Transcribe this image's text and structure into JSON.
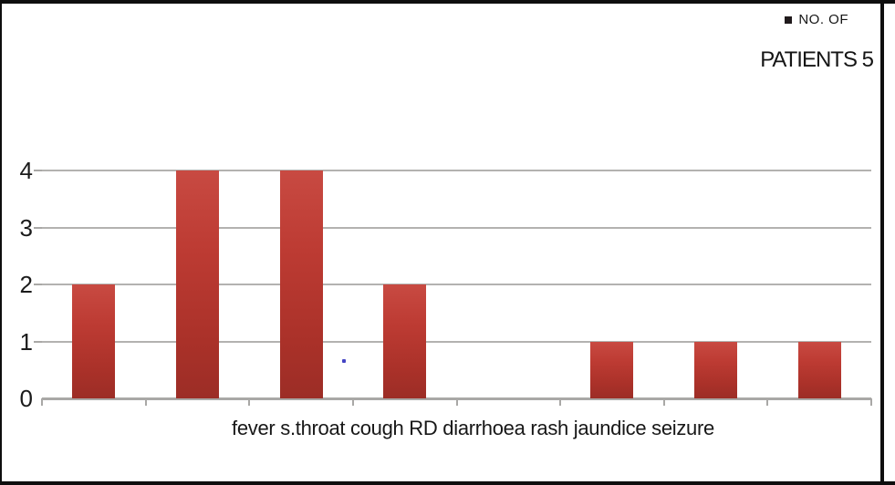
{
  "legend": {
    "line1": "NO. OF",
    "line2": "PATIENTS 5",
    "marker_color": "#201a1c"
  },
  "chart_data": {
    "type": "bar",
    "title": "",
    "categories": [
      "fever",
      "s.throat",
      "cough",
      "RD",
      "diarrhoea",
      "rash",
      "jaundice",
      "seizure"
    ],
    "values": [
      2,
      4,
      4,
      2,
      0,
      1,
      1,
      1
    ],
    "series_name": "NO. OF PATIENTS 5",
    "xlabel": "fever s.throat cough RD diarrhoea rash jaundice seizure",
    "ylabel": "",
    "ylim": [
      0,
      4
    ],
    "yticks": [
      0,
      1,
      2,
      3,
      4
    ],
    "grid": true,
    "legend_position": "top-right",
    "bar_color": "#b5372e"
  },
  "colors": {
    "bar_gradient_top": "#c84a42",
    "bar_gradient_bottom": "#9c2d26",
    "gridline": "#b3b2b0",
    "axis": "#a9a8a6",
    "text": "#171717",
    "frame": "#0e0e0e"
  }
}
